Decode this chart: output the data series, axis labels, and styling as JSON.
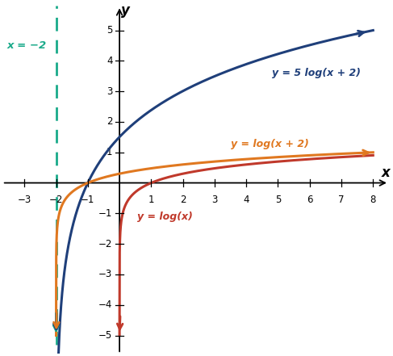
{
  "xlim": [
    -3.7,
    8.5
  ],
  "ylim": [
    -5.6,
    5.8
  ],
  "xticks": [
    -3,
    -2,
    -1,
    1,
    2,
    3,
    4,
    5,
    6,
    7,
    8
  ],
  "yticks": [
    -5,
    -4,
    -3,
    -2,
    -1,
    1,
    2,
    3,
    4,
    5
  ],
  "color_blue": "#1f3f7a",
  "color_orange": "#e07820",
  "color_red": "#c0392b",
  "color_teal": "#1aaa8a",
  "asymptote_x": -2,
  "label_5log": "y = 5 log(x + 2)",
  "label_log_shift": "y = log(x + 2)",
  "label_log": "y = log(x)",
  "label_asymptote": "x = −2",
  "figsize": [
    4.87,
    4.41
  ],
  "dpi": 100
}
